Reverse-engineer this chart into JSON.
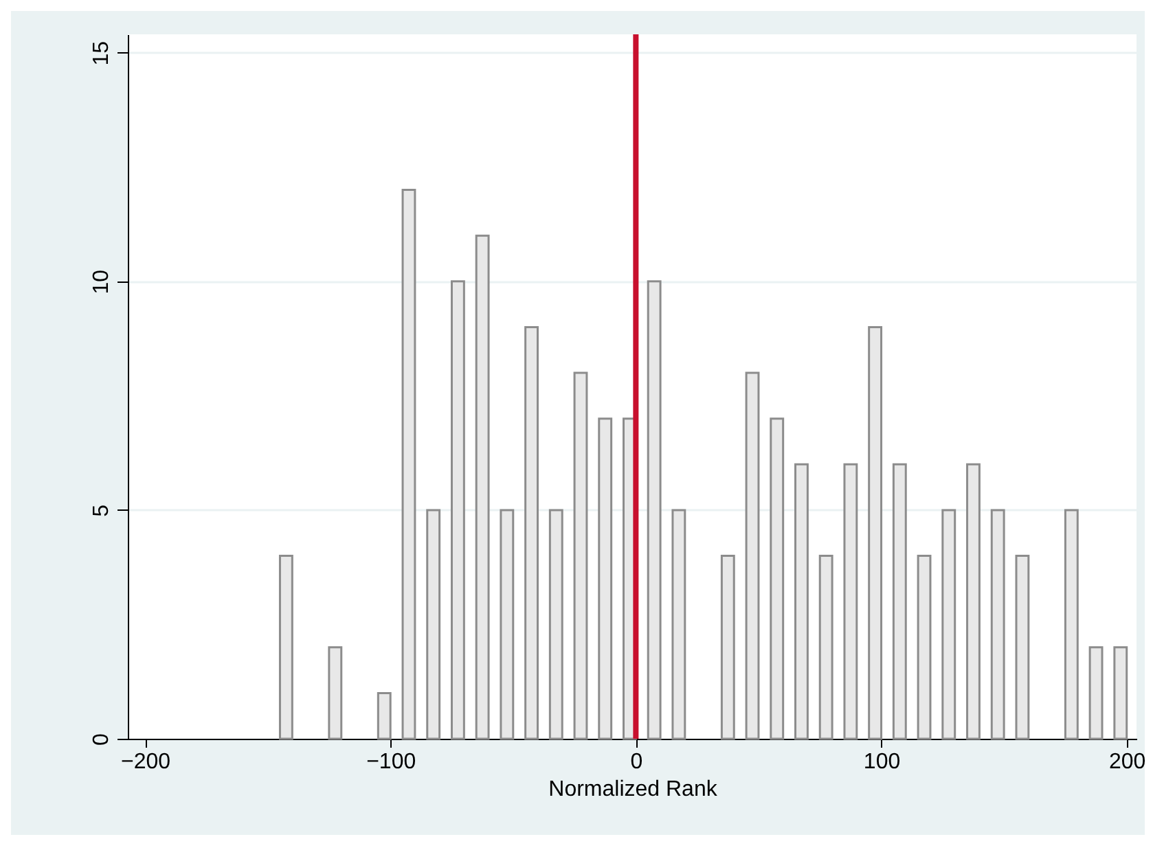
{
  "chart_data": {
    "type": "bar",
    "xlabel": "Normalized Rank",
    "x": [
      -142.5,
      -122.5,
      -102.5,
      -92.5,
      -82.5,
      -72.5,
      -62.5,
      -52.5,
      -42.5,
      -32.5,
      -22.5,
      -12.5,
      -2.5,
      7.5,
      17.5,
      37.5,
      47.5,
      57.5,
      67.5,
      77.5,
      87.5,
      97.5,
      107.5,
      117.5,
      127.5,
      137.5,
      147.5,
      157.5,
      177.5,
      187.5,
      197.5
    ],
    "values": [
      4,
      2,
      1,
      12,
      5,
      10,
      11,
      5,
      9,
      5,
      8,
      7,
      7,
      10,
      5,
      4,
      8,
      7,
      6,
      4,
      6,
      9,
      6,
      4,
      5,
      6,
      5,
      4,
      5,
      2,
      2
    ],
    "color": "#e8e8e8",
    "xlim": [
      -207,
      204
    ],
    "xticks": [
      -200,
      -100,
      0,
      100,
      200
    ],
    "ylim": [
      0,
      15.4
    ],
    "yticks": [
      0,
      5,
      10,
      15
    ],
    "grid": "y",
    "ref_lines": [
      {
        "axis": "x",
        "value": 0,
        "color": "#c8102e"
      }
    ]
  }
}
